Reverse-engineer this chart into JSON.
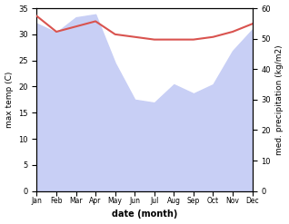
{
  "months": [
    "Jan",
    "Feb",
    "Mar",
    "Apr",
    "May",
    "Jun",
    "Jul",
    "Aug",
    "Sep",
    "Oct",
    "Nov",
    "Dec"
  ],
  "month_indices": [
    0,
    1,
    2,
    3,
    4,
    5,
    6,
    7,
    8,
    9,
    10,
    11
  ],
  "temperature": [
    33.5,
    30.5,
    31.5,
    32.5,
    30.0,
    29.5,
    29.0,
    29.0,
    29.0,
    29.5,
    30.5,
    32.0
  ],
  "precipitation": [
    55,
    52,
    57,
    58,
    42,
    30,
    29,
    35,
    32,
    35,
    46,
    53
  ],
  "temp_color": "#d9534f",
  "precip_fill_color": "#c8cff5",
  "temp_ylim": [
    0,
    35
  ],
  "precip_ylim": [
    0,
    60
  ],
  "temp_yticks": [
    0,
    5,
    10,
    15,
    20,
    25,
    30,
    35
  ],
  "precip_yticks": [
    0,
    10,
    20,
    30,
    40,
    50,
    60
  ],
  "xlabel": "date (month)",
  "ylabel_left": "max temp (C)",
  "ylabel_right": "med. precipitation (kg/m2)",
  "background_color": "#ffffff",
  "figsize": [
    3.18,
    2.47
  ],
  "dpi": 100
}
